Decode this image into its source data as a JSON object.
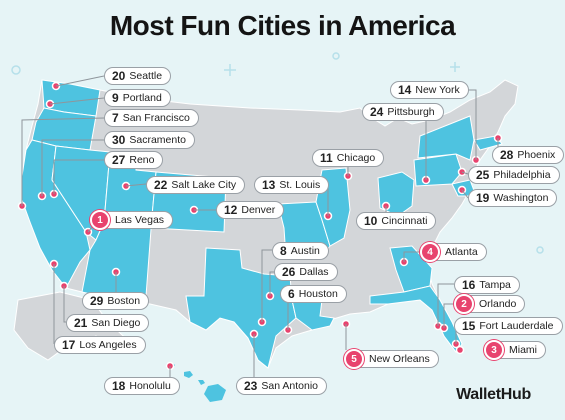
{
  "title": "Most Fun Cities in America",
  "brand": "WalletHub",
  "colors": {
    "highlight_state": "#4ec3e0",
    "other_state": "#d3d6d9",
    "background": "#e6f4f6",
    "top5_marker": "#e8436e",
    "city_dot": "#e8436e"
  },
  "cities": [
    {
      "rank": "1",
      "name": "Las Vegas",
      "top5": true
    },
    {
      "rank": "2",
      "name": "Orlando",
      "top5": true
    },
    {
      "rank": "3",
      "name": "Miami",
      "top5": true
    },
    {
      "rank": "4",
      "name": "Atlanta",
      "top5": true
    },
    {
      "rank": "5",
      "name": "New Orleans",
      "top5": true
    },
    {
      "rank": "6",
      "name": "Houston",
      "top5": false
    },
    {
      "rank": "7",
      "name": "San Francisco",
      "top5": false
    },
    {
      "rank": "8",
      "name": "Austin",
      "top5": false
    },
    {
      "rank": "9",
      "name": "Portland",
      "top5": false
    },
    {
      "rank": "10",
      "name": "Cincinnati",
      "top5": false
    },
    {
      "rank": "11",
      "name": "Chicago",
      "top5": false
    },
    {
      "rank": "12",
      "name": "Denver",
      "top5": false
    },
    {
      "rank": "13",
      "name": "St. Louis",
      "top5": false
    },
    {
      "rank": "14",
      "name": "New York",
      "top5": false
    },
    {
      "rank": "15",
      "name": "Fort Lauderdale",
      "top5": false
    },
    {
      "rank": "16",
      "name": "Tampa",
      "top5": false
    },
    {
      "rank": "17",
      "name": "Los Angeles",
      "top5": false
    },
    {
      "rank": "18",
      "name": "Honolulu",
      "top5": false
    },
    {
      "rank": "19",
      "name": "Washington",
      "top5": false
    },
    {
      "rank": "20",
      "name": "Seattle",
      "top5": false
    },
    {
      "rank": "21",
      "name": "San Diego",
      "top5": false
    },
    {
      "rank": "23",
      "name": "San Antonio",
      "top5": false
    },
    {
      "rank": "24",
      "name": "Pittsburgh",
      "top5": false
    },
    {
      "rank": "25",
      "name": "Philadelphia",
      "top5": false
    },
    {
      "rank": "26",
      "name": "Dallas",
      "top5": false
    },
    {
      "rank": "27",
      "name": "Reno",
      "top5": false
    },
    {
      "rank": "28",
      "name": "Phoenix",
      "top5": false
    },
    {
      "rank": "29",
      "name": "Boston",
      "top5": false
    },
    {
      "rank": "30",
      "name": "Sacramento",
      "top5": false
    },
    {
      "rank": "22",
      "name": "Salt Lake City",
      "top5": false
    }
  ]
}
